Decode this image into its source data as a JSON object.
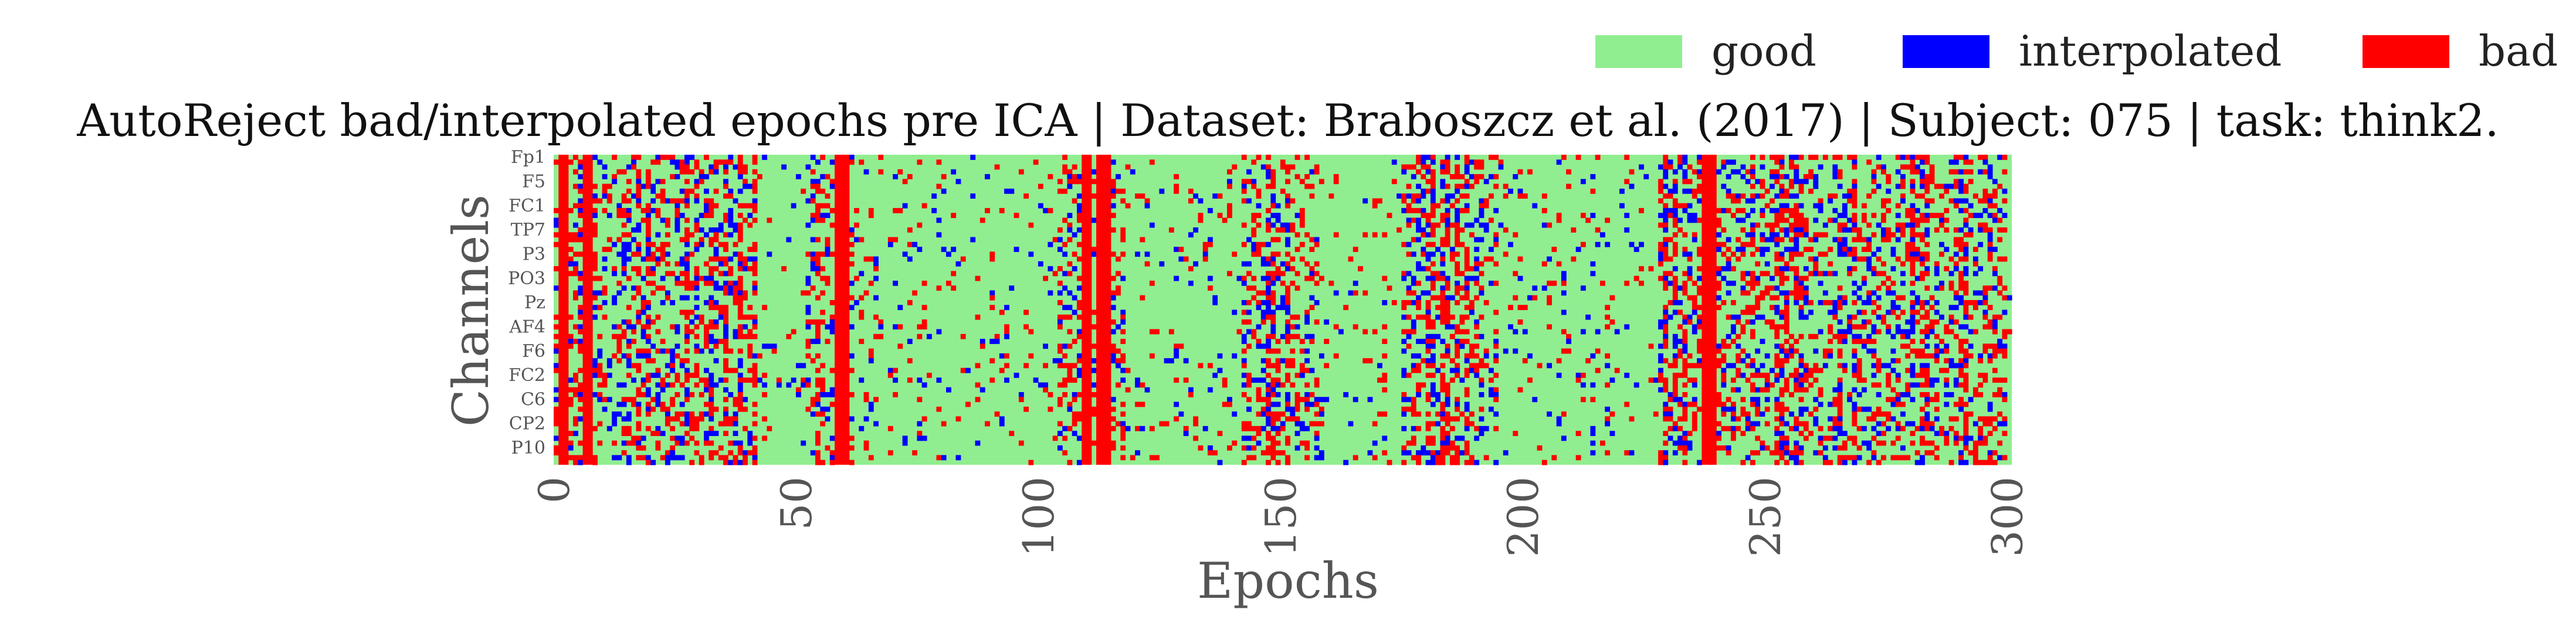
{
  "chart_data": {
    "type": "heatmap",
    "title": "AutoReject bad/interpolated epochs pre ICA | Dataset: Braboszcz et al. (2017) | Subject: 075 | task: think2.",
    "xlabel": "Epochs",
    "ylabel": "Channels",
    "xlim": [
      0,
      301
    ],
    "xticks": [
      "0",
      "50",
      "100",
      "150",
      "200",
      "250",
      "300"
    ],
    "xtick_values": [
      0,
      50,
      100,
      150,
      200,
      250,
      300
    ],
    "channel_count": 64,
    "channel_tick_labels": [
      "Fp1",
      "F5",
      "FC1",
      "TP7",
      "P3",
      "PO3",
      "Pz",
      "AF4",
      "F6",
      "FC2",
      "C6",
      "CP2",
      "P10"
    ],
    "channel_tick_indices": [
      0,
      5,
      10,
      15,
      20,
      25,
      30,
      35,
      40,
      45,
      50,
      55,
      60
    ],
    "legend": [
      {
        "label": "good",
        "color": "#90ee90"
      },
      {
        "label": "interpolated",
        "color": "#0000ff"
      },
      {
        "label": "bad",
        "color": "#ff0000"
      }
    ],
    "legend_position": "top-right",
    "grid": false,
    "bad_epochs": [
      1,
      2,
      6,
      7,
      58,
      59,
      60,
      109,
      110,
      112,
      113,
      114,
      237,
      238,
      239
    ],
    "high_density_ranges": [
      [
        0,
        12
      ],
      [
        12,
        42
      ],
      [
        52,
        62
      ],
      [
        104,
        118
      ],
      [
        142,
        158
      ],
      [
        175,
        195
      ],
      [
        228,
        300
      ]
    ],
    "low_density_ranges": [
      [
        62,
        104
      ],
      [
        118,
        142
      ],
      [
        158,
        175
      ],
      [
        195,
        228
      ]
    ]
  }
}
